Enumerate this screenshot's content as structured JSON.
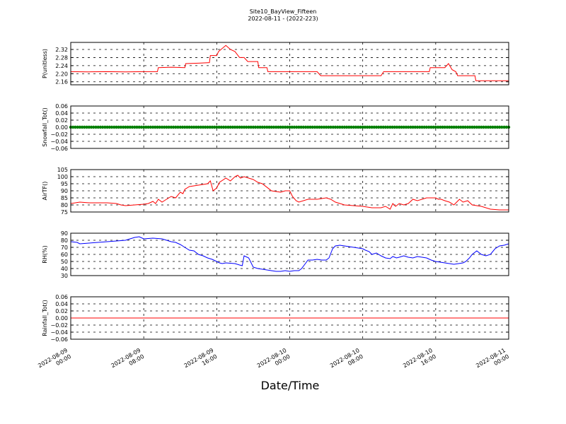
{
  "chart_data": {
    "title": "Site10_BayView_Fifteen",
    "subtitle": "2022-08-11 - (2022-223)",
    "xlabel": "Date/Time",
    "x_ticks": [
      {
        "hours": 0,
        "line1": "2022-08-09",
        "line2": "00:00"
      },
      {
        "hours": 8,
        "line1": "2022-08-09",
        "line2": "08:00"
      },
      {
        "hours": 16,
        "line1": "2022-08-09",
        "line2": "16:00"
      },
      {
        "hours": 24,
        "line1": "2022-08-10",
        "line2": "00:00"
      },
      {
        "hours": 32,
        "line1": "2022-08-10",
        "line2": "08:00"
      },
      {
        "hours": 40,
        "line1": "2022-08-10",
        "line2": "16:00"
      },
      {
        "hours": 48,
        "line1": "2022-08-11",
        "line2": "00:00"
      }
    ],
    "xlim_hours": [
      0,
      48
    ],
    "grid": true,
    "panels": [
      {
        "id": "p",
        "ylabel": "P(unitless)",
        "ylim": [
          2.145,
          2.355
        ],
        "yticks": [
          "2.16",
          "2.20",
          "2.24",
          "2.28",
          "2.32"
        ],
        "ytick_values": [
          2.16,
          2.2,
          2.24,
          2.28,
          2.32
        ],
        "type": "line",
        "color": "#ff0000",
        "series": [
          [
            0,
            2.21
          ],
          [
            2,
            2.209
          ],
          [
            4,
            2.21
          ],
          [
            6,
            2.209
          ],
          [
            8,
            2.21
          ],
          [
            9.5,
            2.21
          ],
          [
            9.6,
            2.23
          ],
          [
            11,
            2.232
          ],
          [
            12.5,
            2.23
          ],
          [
            12.6,
            2.25
          ],
          [
            14,
            2.252
          ],
          [
            15.2,
            2.255
          ],
          [
            15.3,
            2.29
          ],
          [
            16,
            2.29
          ],
          [
            16.2,
            2.31
          ],
          [
            17,
            2.34
          ],
          [
            17.5,
            2.32
          ],
          [
            18,
            2.31
          ],
          [
            18.5,
            2.28
          ],
          [
            19,
            2.28
          ],
          [
            19.4,
            2.26
          ],
          [
            20.5,
            2.26
          ],
          [
            20.6,
            2.23
          ],
          [
            21.5,
            2.23
          ],
          [
            21.6,
            2.21
          ],
          [
            24,
            2.21
          ],
          [
            26,
            2.21
          ],
          [
            27,
            2.21
          ],
          [
            27.4,
            2.19
          ],
          [
            28,
            2.19
          ],
          [
            30,
            2.19
          ],
          [
            32,
            2.19
          ],
          [
            34,
            2.19
          ],
          [
            34.3,
            2.21
          ],
          [
            36,
            2.21
          ],
          [
            38,
            2.21
          ],
          [
            39.3,
            2.21
          ],
          [
            39.4,
            2.23
          ],
          [
            40,
            2.23
          ],
          [
            41,
            2.23
          ],
          [
            41.4,
            2.25
          ],
          [
            41.8,
            2.22
          ],
          [
            42.2,
            2.21
          ],
          [
            42.4,
            2.19
          ],
          [
            43,
            2.19
          ],
          [
            44,
            2.19
          ],
          [
            44.3,
            2.19
          ],
          [
            44.4,
            2.165
          ],
          [
            46,
            2.165
          ],
          [
            48,
            2.165
          ]
        ]
      },
      {
        "id": "snow",
        "ylabel": "Snowfall_Tot()",
        "ylim": [
          -0.06,
          0.06
        ],
        "yticks": [
          "−0.06",
          "−0.04",
          "−0.02",
          "0.00",
          "0.02",
          "0.04",
          "0.06"
        ],
        "ytick_values": [
          -0.06,
          -0.04,
          -0.02,
          0.0,
          0.02,
          0.04,
          0.06
        ],
        "type": "line-markers",
        "color": "#007f00",
        "constant": 0
      },
      {
        "id": "air",
        "ylabel": "AirTF()",
        "ylim": [
          75,
          105
        ],
        "yticks": [
          "75",
          "80",
          "85",
          "90",
          "95",
          "100",
          "105"
        ],
        "ytick_values": [
          75,
          80,
          85,
          90,
          95,
          100,
          105
        ],
        "type": "line",
        "color": "#ff0000",
        "series": [
          [
            0,
            81
          ],
          [
            1,
            82
          ],
          [
            2,
            81.5
          ],
          [
            4,
            81.5
          ],
          [
            5,
            81
          ],
          [
            5.5,
            80
          ],
          [
            6,
            79.5
          ],
          [
            7,
            80
          ],
          [
            8,
            80.5
          ],
          [
            8.5,
            81
          ],
          [
            9,
            82.5
          ],
          [
            9.3,
            81
          ],
          [
            9.6,
            84
          ],
          [
            10,
            82
          ],
          [
            10.5,
            84
          ],
          [
            11,
            86
          ],
          [
            11.5,
            85
          ],
          [
            12,
            89
          ],
          [
            12.3,
            88
          ],
          [
            12.5,
            91
          ],
          [
            13,
            93
          ],
          [
            14,
            94
          ],
          [
            15,
            95
          ],
          [
            15.3,
            97
          ],
          [
            15.6,
            90
          ],
          [
            16,
            92
          ],
          [
            16.3,
            96
          ],
          [
            17,
            99
          ],
          [
            17.5,
            97
          ],
          [
            18,
            100
          ],
          [
            18.3,
            101
          ],
          [
            18.6,
            99
          ],
          [
            19,
            100
          ],
          [
            20,
            98
          ],
          [
            20.5,
            96
          ],
          [
            21,
            95
          ],
          [
            22,
            90
          ],
          [
            23,
            89
          ],
          [
            23.5,
            90
          ],
          [
            24,
            90
          ],
          [
            24.3,
            86
          ],
          [
            24.7,
            83
          ],
          [
            25,
            82
          ],
          [
            26,
            84
          ],
          [
            27,
            84
          ],
          [
            28,
            85
          ],
          [
            28.5,
            84
          ],
          [
            29,
            82
          ],
          [
            30,
            80
          ],
          [
            31,
            79.5
          ],
          [
            32,
            79
          ],
          [
            33,
            78
          ],
          [
            34,
            78
          ],
          [
            34.5,
            79
          ],
          [
            35,
            77
          ],
          [
            35.3,
            81
          ],
          [
            35.6,
            79
          ],
          [
            36,
            81
          ],
          [
            36.5,
            80
          ],
          [
            37,
            81
          ],
          [
            37.5,
            84
          ],
          [
            38,
            83
          ],
          [
            39,
            85
          ],
          [
            40,
            85
          ],
          [
            40.3,
            84
          ],
          [
            40.6,
            84
          ],
          [
            41,
            83
          ],
          [
            41.5,
            82
          ],
          [
            42,
            80
          ],
          [
            42.3,
            82
          ],
          [
            42.6,
            84
          ],
          [
            43,
            82
          ],
          [
            43.5,
            83
          ],
          [
            44,
            80
          ],
          [
            45,
            79
          ],
          [
            46,
            77
          ],
          [
            47,
            76.5
          ],
          [
            48,
            76.5
          ]
        ]
      },
      {
        "id": "rh",
        "ylabel": "RH(%)",
        "ylim": [
          30,
          90
        ],
        "yticks": [
          "30",
          "40",
          "50",
          "60",
          "70",
          "80",
          "90"
        ],
        "ytick_values": [
          30,
          40,
          50,
          60,
          70,
          80,
          90
        ],
        "type": "line",
        "color": "#0000ff",
        "series": [
          [
            0,
            78
          ],
          [
            0.7,
            77
          ],
          [
            1,
            75
          ],
          [
            2,
            76
          ],
          [
            3,
            77
          ],
          [
            4,
            78
          ],
          [
            5,
            79
          ],
          [
            6,
            80
          ],
          [
            6.5,
            82
          ],
          [
            7,
            84
          ],
          [
            7.5,
            85
          ],
          [
            8,
            82
          ],
          [
            9,
            83
          ],
          [
            10,
            82
          ],
          [
            10.5,
            80
          ],
          [
            11,
            78
          ],
          [
            11.5,
            77
          ],
          [
            12,
            74
          ],
          [
            12.5,
            70
          ],
          [
            13,
            66
          ],
          [
            13.5,
            65
          ],
          [
            14,
            60
          ],
          [
            14.5,
            58
          ],
          [
            15,
            55
          ],
          [
            15.5,
            53
          ],
          [
            16,
            50
          ],
          [
            16.3,
            48
          ],
          [
            16.6,
            47
          ],
          [
            17,
            48
          ],
          [
            18,
            47
          ],
          [
            18.5,
            45
          ],
          [
            18.8,
            44
          ],
          [
            19,
            58
          ],
          [
            19.5,
            55
          ],
          [
            20,
            42
          ],
          [
            20.5,
            40
          ],
          [
            21,
            39
          ],
          [
            21.5,
            38
          ],
          [
            22,
            37
          ],
          [
            22.5,
            36
          ],
          [
            23,
            36
          ],
          [
            23.5,
            37
          ],
          [
            24,
            36
          ],
          [
            24.5,
            37
          ],
          [
            25,
            37
          ],
          [
            25.3,
            40
          ],
          [
            25.6,
            45
          ],
          [
            26,
            52
          ],
          [
            26.5,
            52
          ],
          [
            27,
            53
          ],
          [
            27.5,
            52
          ],
          [
            28,
            52
          ],
          [
            28.3,
            55
          ],
          [
            28.7,
            68
          ],
          [
            29,
            72
          ],
          [
            29.5,
            73
          ],
          [
            30,
            72
          ],
          [
            31,
            70
          ],
          [
            32,
            68
          ],
          [
            32.3,
            66
          ],
          [
            32.7,
            64
          ],
          [
            33,
            60
          ],
          [
            33.5,
            62
          ],
          [
            34,
            58
          ],
          [
            34.5,
            55
          ],
          [
            35,
            54
          ],
          [
            35.3,
            57
          ],
          [
            35.7,
            55
          ],
          [
            36,
            56
          ],
          [
            36.5,
            58
          ],
          [
            37,
            56
          ],
          [
            37.5,
            55
          ],
          [
            38,
            57
          ],
          [
            38.5,
            56
          ],
          [
            39,
            55
          ],
          [
            39.5,
            52
          ],
          [
            40,
            50
          ],
          [
            40.5,
            49
          ],
          [
            41,
            48
          ],
          [
            41.5,
            47
          ],
          [
            42,
            46
          ],
          [
            42.5,
            47
          ],
          [
            43,
            48
          ],
          [
            43.3,
            50
          ],
          [
            43.7,
            55
          ],
          [
            44,
            60
          ],
          [
            44.5,
            65
          ],
          [
            45,
            60
          ],
          [
            45.5,
            58
          ],
          [
            46,
            60
          ],
          [
            46.5,
            68
          ],
          [
            47,
            72
          ],
          [
            47.5,
            73
          ],
          [
            48,
            75
          ]
        ]
      },
      {
        "id": "rain",
        "ylabel": "Rainfall_Tot()",
        "ylim": [
          -0.06,
          0.06
        ],
        "yticks": [
          "−0.06",
          "−0.04",
          "−0.02",
          "0.00",
          "0.02",
          "0.04",
          "0.06"
        ],
        "ytick_values": [
          -0.06,
          -0.04,
          -0.02,
          0.0,
          0.02,
          0.04,
          0.06
        ],
        "type": "line",
        "color": "#ff0000",
        "constant": 0
      }
    ]
  }
}
